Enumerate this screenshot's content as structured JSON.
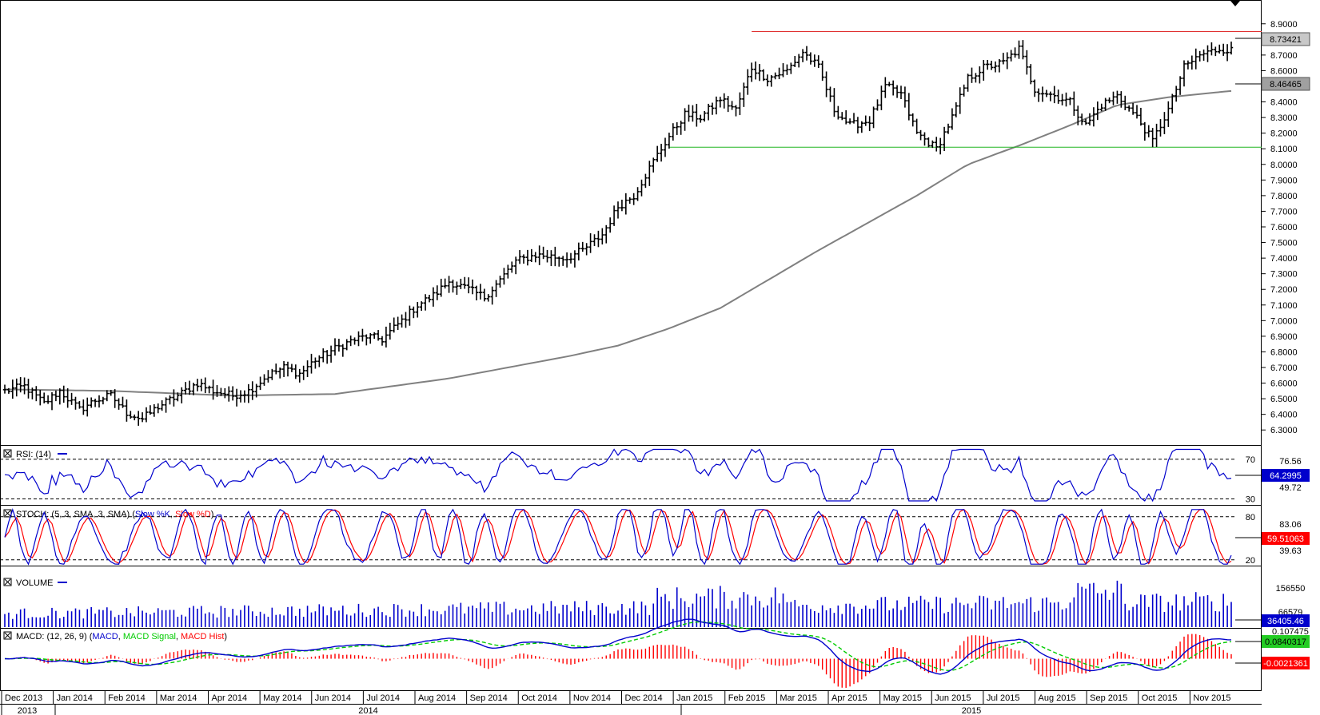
{
  "chart_data": [
    {
      "type": "ohlc",
      "x_labels": [
        "Dec 2013",
        "Jan 2014",
        "Feb 2014",
        "Mar 2014",
        "Apr 2014",
        "May 2014",
        "Jun 2014",
        "Jul 2014",
        "Aug 2014",
        "Sep 2014",
        "Oct 2014",
        "Nov 2014",
        "Dec 2014",
        "Jan 2015",
        "Feb 2015",
        "Mar 2015",
        "Apr 2015",
        "May 2015",
        "Jun 2015",
        "Jul 2015",
        "Aug 2015",
        "Sep 2015",
        "Oct 2015",
        "Nov 2015"
      ],
      "year_labels": [
        "2013",
        "2014",
        "2015"
      ],
      "y_ticks": [
        "8.9000",
        "8.8000",
        "8.7000",
        "8.6000",
        "8.5000",
        "8.4000",
        "8.3000",
        "8.2000",
        "8.1000",
        "8.0000",
        "7.9000",
        "7.8000",
        "7.7000",
        "7.6000",
        "7.5000",
        "7.4000",
        "7.3000",
        "7.2000",
        "7.1000",
        "7.0000",
        "6.9000",
        "6.8000",
        "6.7000",
        "6.6000",
        "6.5000",
        "6.4000",
        "6.3000"
      ],
      "ylim": [
        6.25,
        8.95
      ],
      "anchors": [
        [
          0,
          6.55
        ],
        [
          5,
          6.58
        ],
        [
          10,
          6.47
        ],
        [
          14,
          6.55
        ],
        [
          19,
          6.43
        ],
        [
          23,
          6.49
        ],
        [
          27,
          6.52
        ],
        [
          31,
          6.41
        ],
        [
          35,
          6.37
        ],
        [
          39,
          6.45
        ],
        [
          44,
          6.52
        ],
        [
          49,
          6.6
        ],
        [
          53,
          6.55
        ],
        [
          58,
          6.52
        ],
        [
          62,
          6.55
        ],
        [
          67,
          6.65
        ],
        [
          71,
          6.7
        ],
        [
          75,
          6.66
        ],
        [
          79,
          6.75
        ],
        [
          84,
          6.82
        ],
        [
          88,
          6.87
        ],
        [
          92,
          6.9
        ],
        [
          96,
          6.88
        ],
        [
          101,
          7.0
        ],
        [
          105,
          7.1
        ],
        [
          109,
          7.16
        ],
        [
          113,
          7.25
        ],
        [
          118,
          7.2
        ],
        [
          122,
          7.15
        ],
        [
          126,
          7.26
        ],
        [
          130,
          7.38
        ],
        [
          135,
          7.42
        ],
        [
          139,
          7.41
        ],
        [
          143,
          7.4
        ],
        [
          147,
          7.45
        ],
        [
          152,
          7.55
        ],
        [
          156,
          7.73
        ],
        [
          160,
          7.8
        ],
        [
          165,
          8.02
        ],
        [
          169,
          8.18
        ],
        [
          173,
          8.32
        ],
        [
          177,
          8.3
        ],
        [
          182,
          8.42
        ],
        [
          186,
          8.35
        ],
        [
          190,
          8.62
        ],
        [
          194,
          8.55
        ],
        [
          199,
          8.6
        ],
        [
          203,
          8.72
        ],
        [
          207,
          8.62
        ],
        [
          211,
          8.35
        ],
        [
          215,
          8.25
        ],
        [
          220,
          8.28
        ],
        [
          224,
          8.5
        ],
        [
          228,
          8.45
        ],
        [
          232,
          8.2
        ],
        [
          237,
          8.1
        ],
        [
          241,
          8.3
        ],
        [
          245,
          8.55
        ],
        [
          249,
          8.62
        ],
        [
          254,
          8.65
        ],
        [
          258,
          8.74
        ],
        [
          262,
          8.48
        ],
        [
          266,
          8.45
        ],
        [
          271,
          8.4
        ],
        [
          275,
          8.25
        ],
        [
          279,
          8.38
        ],
        [
          283,
          8.44
        ],
        [
          288,
          8.3
        ],
        [
          292,
          8.15
        ],
        [
          296,
          8.35
        ],
        [
          300,
          8.62
        ],
        [
          304,
          8.7
        ],
        [
          309,
          8.74
        ],
        [
          312,
          8.73
        ]
      ],
      "candle_count": 313,
      "resistance": 8.85,
      "support": 8.11,
      "ma_anchors": [
        [
          0,
          6.56
        ],
        [
          27,
          6.55
        ],
        [
          58,
          6.52
        ],
        [
          84,
          6.53
        ],
        [
          113,
          6.63
        ],
        [
          143,
          6.77
        ],
        [
          156,
          6.84
        ],
        [
          169,
          6.95
        ],
        [
          182,
          7.08
        ],
        [
          207,
          7.45
        ],
        [
          232,
          7.8
        ],
        [
          245,
          8.0
        ],
        [
          258,
          8.12
        ],
        [
          271,
          8.25
        ],
        [
          283,
          8.38
        ],
        [
          296,
          8.43
        ],
        [
          312,
          8.47
        ]
      ],
      "last_value_label": "8.73421",
      "ma_value_label": "8.46465"
    },
    {
      "type": "line",
      "title": "RSI: (14)",
      "levels": [
        "70",
        "30"
      ],
      "right_labels": [
        "76.56",
        "49.72"
      ],
      "last_value_label": "64.2995",
      "ylim": [
        24,
        82
      ]
    },
    {
      "type": "line",
      "title_parts": [
        "STOCH: (5, 3, SMA, 3, SMA) (",
        "Slow %K",
        ", ",
        "Slow %D",
        ")"
      ],
      "levels": [
        "80",
        "20"
      ],
      "right_labels": [
        "83.06",
        "39.63"
      ],
      "last_value_label": "59.51063",
      "ylim": [
        12,
        92
      ]
    },
    {
      "type": "bar",
      "title": "VOLUME",
      "right_labels": [
        "156550",
        "66579"
      ],
      "last_value_label": "36405.46",
      "ylim": [
        0,
        180000
      ]
    },
    {
      "type": "line",
      "title_parts": [
        "MACD: (12, 26, 9) (",
        "MACD",
        ", ",
        "MACD Signal",
        ", ",
        "MACD Hist",
        ")"
      ],
      "right_labels": [
        "0.107475"
      ],
      "last_value_label": "0.0840317",
      "hist_value_label": "-0.0021361",
      "ylim": [
        -0.16,
        0.14
      ]
    }
  ],
  "colors": {
    "candle": "#000000",
    "resistance": "#e03030",
    "support": "#22b522",
    "moving_average": "#808080",
    "indicator_line": "#0000cc",
    "signal_line": "#ff0000",
    "macd_signal": "#00cc00",
    "volume_bar": "#0000cc",
    "macd_hist": "#ff0000",
    "value_box_gray": "#a0a0a0",
    "value_box_blue": "#0000cc",
    "value_box_red": "#ff0000",
    "value_box_green": "#22cc22"
  }
}
